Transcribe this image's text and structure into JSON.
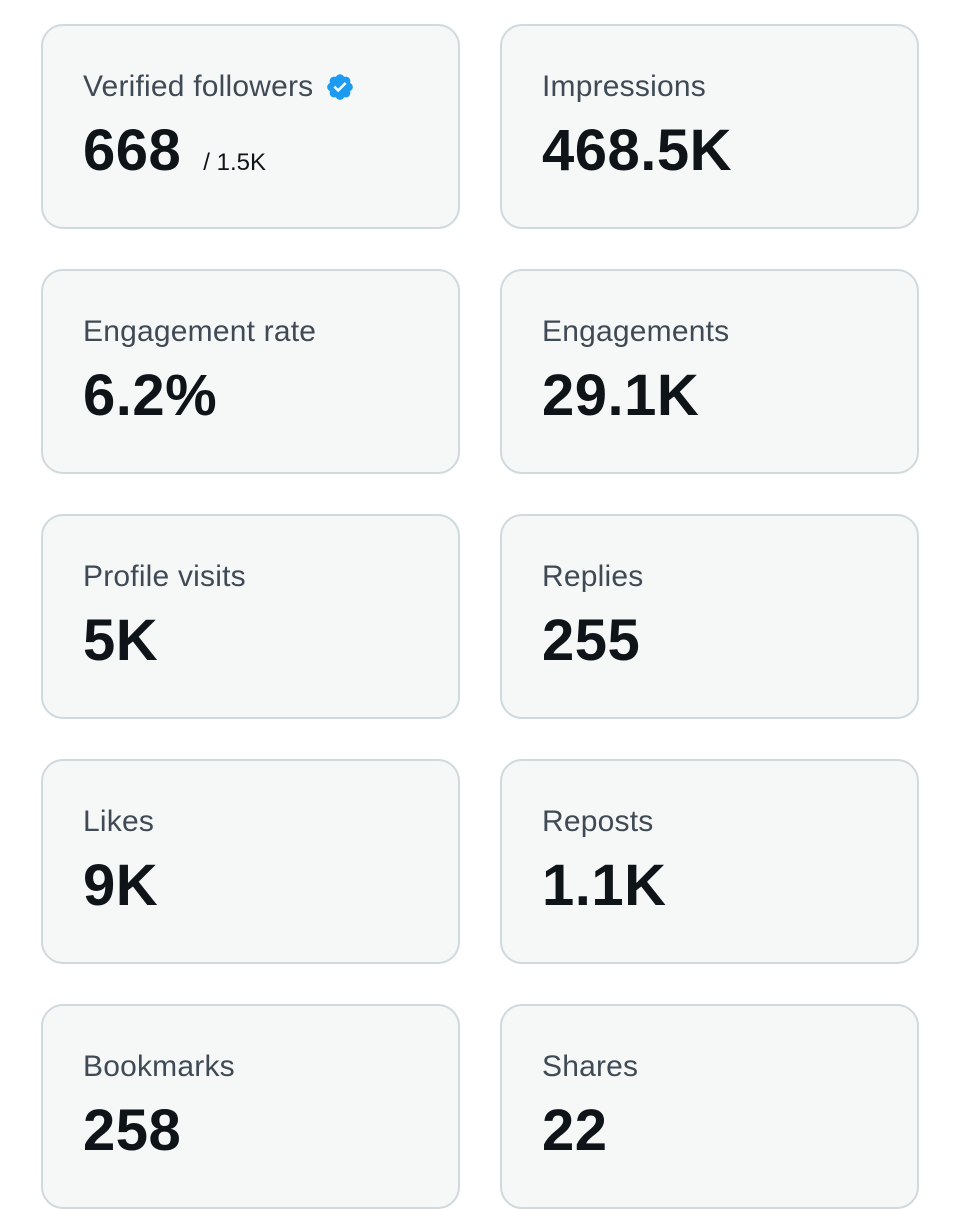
{
  "colors": {
    "card_background": "#f6f8f8",
    "card_border": "#cfd9de",
    "label_text": "#3f4a55",
    "value_text": "#0f1419",
    "verified_badge": "#1d9bf0"
  },
  "metrics": [
    {
      "label": "Verified followers",
      "value": "668",
      "subvalue": "/ 1.5K",
      "icon": "verified-badge-icon"
    },
    {
      "label": "Impressions",
      "value": "468.5K"
    },
    {
      "label": "Engagement rate",
      "value": "6.2%"
    },
    {
      "label": "Engagements",
      "value": "29.1K"
    },
    {
      "label": "Profile visits",
      "value": "5K"
    },
    {
      "label": "Replies",
      "value": "255"
    },
    {
      "label": "Likes",
      "value": "9K"
    },
    {
      "label": "Reposts",
      "value": "1.1K"
    },
    {
      "label": "Bookmarks",
      "value": "258"
    },
    {
      "label": "Shares",
      "value": "22"
    }
  ]
}
